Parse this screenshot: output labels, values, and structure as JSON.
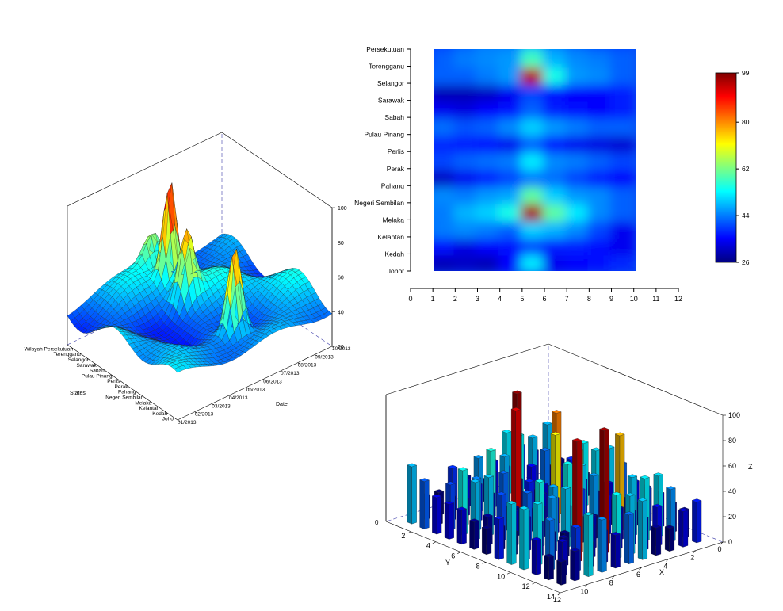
{
  "chart_data": [
    {
      "type": "surface",
      "xlabel": "Date",
      "ylabel": "States",
      "zticks": [
        "20",
        "40",
        "60",
        "80",
        "100"
      ],
      "zlim": [
        20,
        100
      ],
      "date_ticks": [
        "01/2013",
        "02/2013",
        "03/2013",
        "04/2013",
        "05/2013",
        "06/2013",
        "07/2013",
        "08/2013",
        "09/2013",
        "10/2013"
      ],
      "states": [
        "Johor",
        "Kedah",
        "Kelantan",
        "Melaka",
        "Negeri Sembilan",
        "Pahang",
        "Perak",
        "Perlis",
        "Pulau Pinang",
        "Sabah",
        "Sarawak",
        "Selangor",
        "Terengganu",
        "Wilayah Persekutuan"
      ]
    },
    {
      "type": "heatmap",
      "x_ticks": [
        "0",
        "1",
        "2",
        "3",
        "4",
        "5",
        "6",
        "7",
        "8",
        "9",
        "10",
        "11",
        "12"
      ],
      "xlim": [
        0,
        12
      ],
      "x_range": [
        1,
        10
      ],
      "y_labels": [
        "Johor",
        "Kedah",
        "Kelantan",
        "Melaka",
        "Negeri Sembilan",
        "Pahang",
        "Perak",
        "Perlis",
        "Pulau Pinang",
        "Sabah",
        "Sarawak",
        "Selangor",
        "Terengganu",
        "Persekutuan"
      ],
      "colorbar_ticks": [
        "26",
        "44",
        "62",
        "80",
        "99"
      ],
      "colorbar_range": [
        26,
        99
      ],
      "values": [
        [
          32,
          30,
          31,
          30,
          35,
          52,
          34,
          35,
          36,
          38
        ],
        [
          34,
          36,
          33,
          35,
          36,
          40,
          37,
          37,
          36,
          34
        ],
        [
          42,
          44,
          45,
          44,
          42,
          50,
          48,
          45,
          40,
          34
        ],
        [
          44,
          44,
          48,
          50,
          55,
          96,
          60,
          52,
          45,
          42
        ],
        [
          43,
          45,
          44,
          46,
          47,
          60,
          50,
          46,
          45,
          42
        ],
        [
          30,
          31,
          34,
          37,
          40,
          44,
          43,
          40,
          37,
          35
        ],
        [
          40,
          40,
          42,
          43,
          44,
          52,
          45,
          44,
          42,
          40
        ],
        [
          38,
          38,
          37,
          36,
          34,
          42,
          36,
          34,
          33,
          32
        ],
        [
          42,
          43,
          41,
          42,
          45,
          50,
          46,
          44,
          42,
          42
        ],
        [
          36,
          34,
          33,
          35,
          36,
          42,
          37,
          36,
          35,
          37
        ],
        [
          35,
          30,
          30,
          31,
          34,
          40,
          36,
          35,
          35,
          37
        ],
        [
          42,
          42,
          42,
          44,
          46,
          95,
          55,
          46,
          45,
          42
        ],
        [
          38,
          42,
          44,
          45,
          46,
          58,
          48,
          45,
          44,
          42
        ],
        [
          40,
          40,
          42,
          44,
          44,
          48,
          44,
          42,
          40,
          40
        ]
      ]
    },
    {
      "type": "bar3d",
      "xlabel": "X",
      "ylabel": "Y",
      "zlabel": "Z",
      "x_ticks": [
        "0",
        "2",
        "4",
        "6",
        "8",
        "10",
        "12"
      ],
      "y_ticks": [
        "2",
        "4",
        "6",
        "8",
        "10",
        "12",
        "14"
      ],
      "z_ticks": [
        "0",
        "20",
        "40",
        "60",
        "80",
        "100"
      ],
      "zlim": [
        0,
        100
      ]
    }
  ]
}
